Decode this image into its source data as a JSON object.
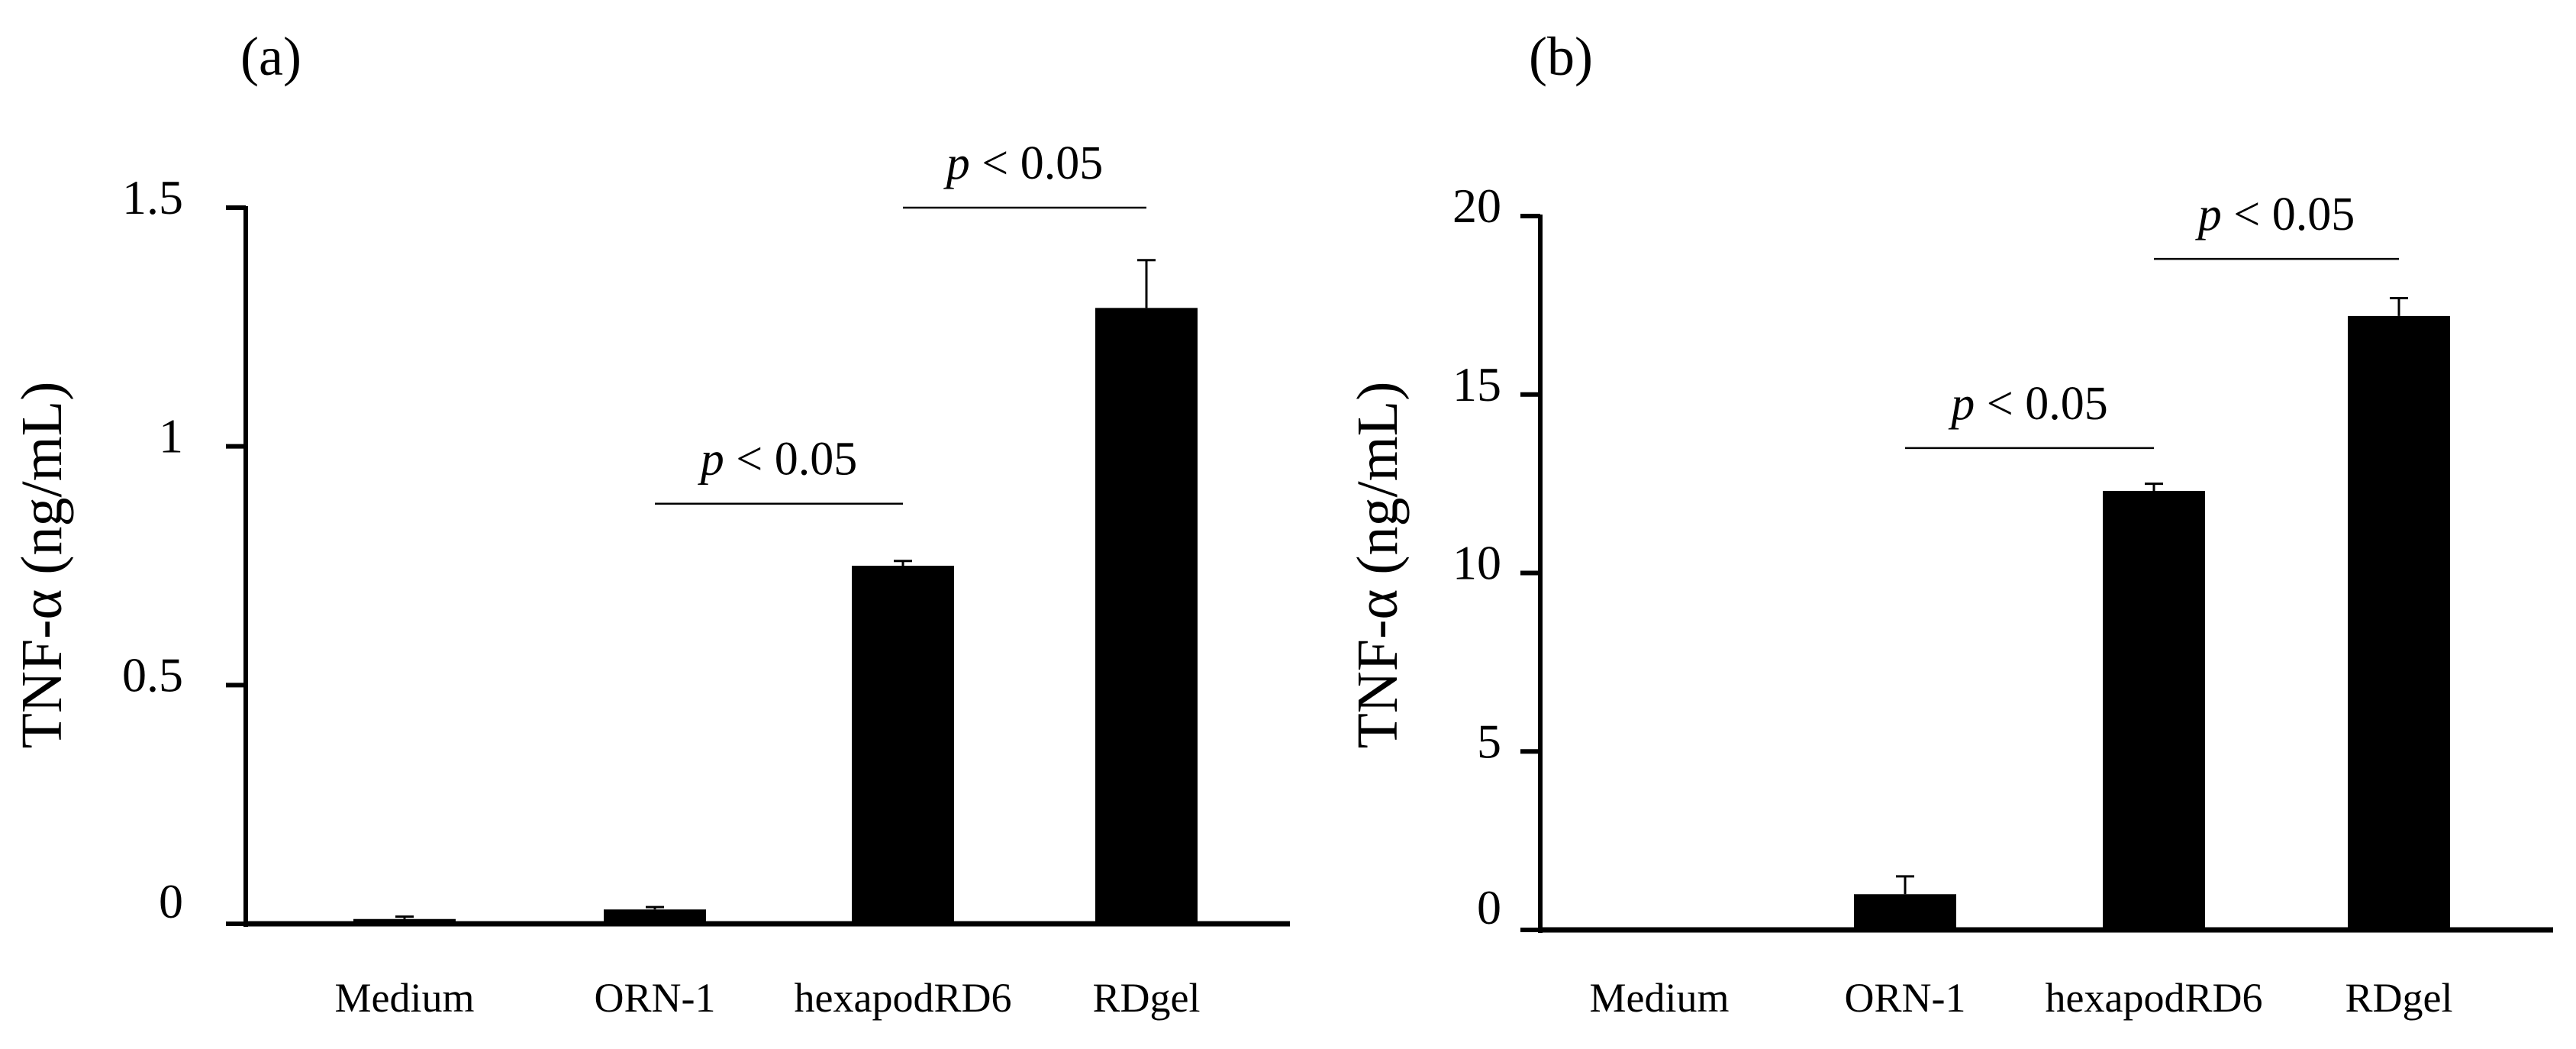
{
  "chart_data": [
    {
      "type": "bar",
      "panel_label": "(a)",
      "title": "",
      "xlabel": "",
      "ylabel": "TNF-α (ng/mL)",
      "categories": [
        "Medium",
        "ORN-1",
        "hexapodRD6",
        "RDgel"
      ],
      "values": [
        0.01,
        0.03,
        0.75,
        1.29
      ],
      "errors": [
        0.005,
        0.005,
        0.01,
        0.1
      ],
      "ylim": [
        0,
        1.5
      ],
      "yticks": [
        0,
        0.5,
        1,
        1.5
      ],
      "ytick_labels": [
        "0",
        "0.5",
        "1",
        "1.5"
      ],
      "grid": false,
      "significance": [
        {
          "from": "ORN-1",
          "to": "hexapodRD6",
          "level": 0.88,
          "italic": "p",
          "text": " < 0.05"
        },
        {
          "from": "hexapodRD6",
          "to": "RDgel",
          "level": 1.5,
          "italic": "p",
          "text": " < 0.05"
        }
      ]
    },
    {
      "type": "bar",
      "panel_label": "(b)",
      "title": "",
      "xlabel": "",
      "ylabel": "TNF-α (ng/mL)",
      "categories": [
        "Medium",
        "ORN-1",
        "hexapodRD6",
        "RDgel"
      ],
      "values": [
        0,
        1,
        12.3,
        17.2
      ],
      "errors": [
        0,
        0.5,
        0.2,
        0.5
      ],
      "ylim": [
        0,
        20
      ],
      "yticks": [
        0,
        5,
        10,
        15,
        20
      ],
      "ytick_labels": [
        "0",
        "5",
        "10",
        "15",
        "20"
      ],
      "grid": false,
      "significance": [
        {
          "from": "ORN-1",
          "to": "hexapodRD6",
          "level": 13.5,
          "italic": "p",
          "text": " < 0.05"
        },
        {
          "from": "hexapodRD6",
          "to": "RDgel",
          "level": 18.8,
          "italic": "p",
          "text": " < 0.05"
        }
      ]
    }
  ]
}
